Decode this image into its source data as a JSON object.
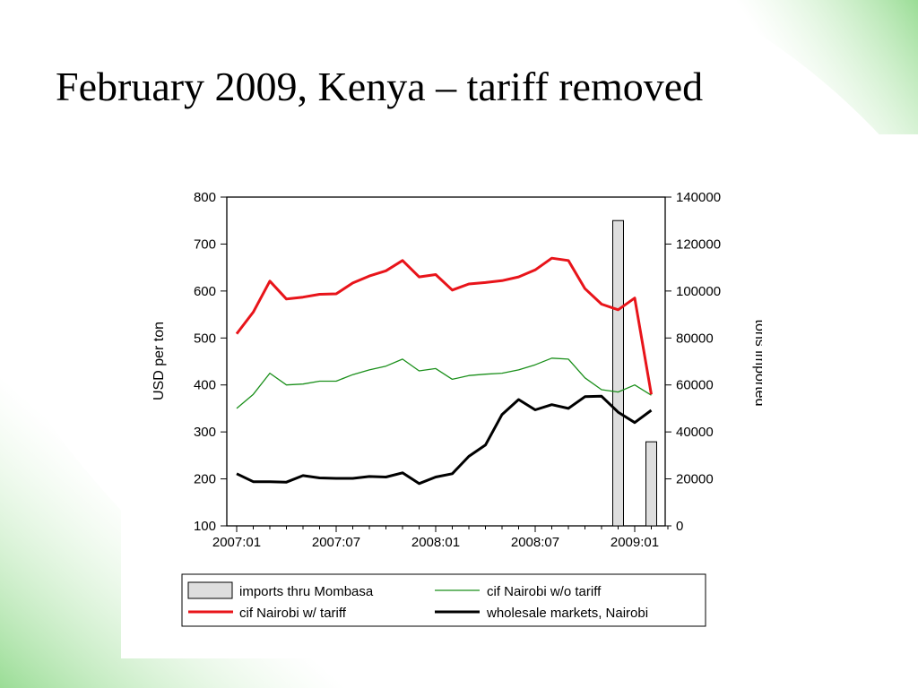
{
  "slide": {
    "title": "February 2009, Kenya – tariff removed"
  },
  "chart_data": {
    "type": "line",
    "x": [
      "2007:01",
      "2007:02",
      "2007:03",
      "2007:04",
      "2007:05",
      "2007:06",
      "2007:07",
      "2007:08",
      "2007:09",
      "2007:10",
      "2007:11",
      "2007:12",
      "2008:01",
      "2008:02",
      "2008:03",
      "2008:04",
      "2008:05",
      "2008:06",
      "2008:07",
      "2008:08",
      "2008:09",
      "2008:10",
      "2008:11",
      "2008:12",
      "2009:01",
      "2009:02",
      "2009:03"
    ],
    "x_tick_labels": [
      "2007:01",
      "2007:07",
      "2008:01",
      "2008:07",
      "2009:01"
    ],
    "ylabel_left": "USD per ton",
    "ylabel_right": "tons imported",
    "ylim_left": [
      100,
      800
    ],
    "ylim_right": [
      0,
      140000
    ],
    "y_ticks_left": [
      100,
      200,
      300,
      400,
      500,
      600,
      700,
      800
    ],
    "y_ticks_right": [
      0,
      20000,
      40000,
      60000,
      80000,
      100000,
      120000,
      140000
    ],
    "grid": false,
    "legend_position": "bottom",
    "series": [
      {
        "name": "imports thru Mombasa",
        "kind": "bar",
        "axis": "right",
        "color": "#dedede",
        "values": [
          null,
          null,
          null,
          null,
          null,
          null,
          null,
          null,
          null,
          null,
          null,
          null,
          null,
          null,
          null,
          null,
          null,
          null,
          null,
          null,
          null,
          null,
          null,
          130000,
          null,
          35800,
          null
        ]
      },
      {
        "name": "cif Nairobi w/o tariff",
        "kind": "line",
        "axis": "left",
        "color": "#1a8f1a",
        "values": [
          350,
          380,
          425,
          400,
          402,
          408,
          408,
          422,
          432,
          440,
          455,
          430,
          435,
          412,
          420,
          423,
          425,
          432,
          443,
          457,
          455,
          415,
          390,
          385,
          400,
          378,
          null
        ]
      },
      {
        "name": "cif Nairobi w/ tariff",
        "kind": "line",
        "axis": "left",
        "color": "#e8141a",
        "values": [
          509,
          555,
          621,
          583,
          587,
          593,
          594,
          617,
          632,
          643,
          665,
          630,
          635,
          602,
          615,
          618,
          622,
          630,
          645,
          670,
          665,
          605,
          572,
          560,
          585,
          380,
          null
        ]
      },
      {
        "name": "wholesale markets, Nairobi",
        "kind": "line",
        "axis": "left",
        "color": "#000000",
        "values": [
          211,
          194,
          194,
          193,
          207,
          202,
          201,
          201,
          205,
          204,
          213,
          190,
          204,
          211,
          248,
          272,
          337,
          369,
          347,
          358,
          350,
          375,
          376,
          342,
          320,
          346,
          null
        ]
      }
    ]
  }
}
